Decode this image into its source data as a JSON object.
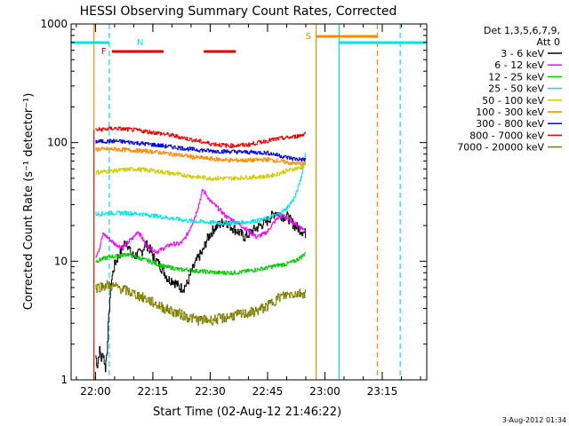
{
  "chart_data": {
    "type": "line",
    "title": "HESSI Observing Summary Count Rates, Corrected",
    "xlabel": "Start Time (02-Aug-12 21:46:22)",
    "ylabel": "Corrected Count Rate (s⁻¹ detector⁻¹)",
    "yscale": "log",
    "ylim": [
      1,
      1000
    ],
    "xlim_minutes": [
      -6.37,
      86.63
    ],
    "y_ticks": [
      {
        "value": 1,
        "label": "1"
      },
      {
        "value": 10,
        "label": "10"
      },
      {
        "value": 100,
        "label": "100"
      },
      {
        "value": 1000,
        "label": "1000"
      }
    ],
    "x_ticks": [
      {
        "minute": 0,
        "label": "22:00"
      },
      {
        "minute": 15,
        "label": "22:15"
      },
      {
        "minute": 30,
        "label": "22:30"
      },
      {
        "minute": 45,
        "label": "22:45"
      },
      {
        "minute": 60,
        "label": "23:00"
      },
      {
        "minute": 75,
        "label": "23:15"
      }
    ],
    "x_minor_step_minutes": 5,
    "legend": {
      "position": "right",
      "header_lines": [
        "Det 1,3,5,6,7,9,",
        "Att 0"
      ]
    },
    "series": [
      {
        "name": "3 - 6 keV",
        "color": "#000000",
        "points": [
          [
            0,
            1.6
          ],
          [
            0.5,
            1.3
          ],
          [
            1,
            1.8
          ],
          [
            1.5,
            1.5
          ],
          [
            2,
            1.7
          ],
          [
            2.5,
            1.2
          ],
          [
            3,
            1.8
          ],
          [
            3.5,
            3.5
          ],
          [
            4,
            6.5
          ],
          [
            5,
            9.5
          ],
          [
            6,
            11
          ],
          [
            7,
            13
          ],
          [
            8,
            15
          ],
          [
            9,
            12
          ],
          [
            10,
            11
          ],
          [
            11,
            11.5
          ],
          [
            12,
            12
          ],
          [
            13,
            14
          ],
          [
            14,
            13
          ],
          [
            15,
            11
          ],
          [
            16,
            10
          ],
          [
            17,
            9
          ],
          [
            18,
            8
          ],
          [
            19,
            7
          ],
          [
            20,
            7
          ],
          [
            21,
            6.5
          ],
          [
            22,
            6
          ],
          [
            23,
            6
          ],
          [
            24,
            6.5
          ],
          [
            25,
            8
          ],
          [
            26,
            9.5
          ],
          [
            27,
            11
          ],
          [
            28,
            12
          ],
          [
            29,
            15
          ],
          [
            30,
            17
          ],
          [
            31,
            19
          ],
          [
            32,
            20
          ],
          [
            33,
            21
          ],
          [
            34,
            22
          ],
          [
            35,
            20
          ],
          [
            36,
            19
          ],
          [
            37,
            18
          ],
          [
            38,
            17
          ],
          [
            39,
            16
          ],
          [
            40,
            17
          ],
          [
            41,
            18
          ],
          [
            42,
            19
          ],
          [
            43,
            20
          ],
          [
            44,
            21
          ],
          [
            45,
            22
          ],
          [
            46,
            24
          ],
          [
            47,
            26
          ],
          [
            48,
            25
          ],
          [
            49,
            24
          ],
          [
            50,
            24
          ],
          [
            51,
            22
          ],
          [
            52,
            20
          ],
          [
            53,
            19
          ],
          [
            54,
            18
          ],
          [
            55,
            17
          ]
        ]
      },
      {
        "name": "6 - 12 keV",
        "color": "#ff00ff",
        "points": [
          [
            0,
            11
          ],
          [
            1,
            13
          ],
          [
            2,
            17
          ],
          [
            3,
            16
          ],
          [
            4,
            15
          ],
          [
            5,
            14
          ],
          [
            6,
            13.5
          ],
          [
            7,
            13
          ],
          [
            8,
            14
          ],
          [
            9,
            15
          ],
          [
            10,
            16
          ],
          [
            11,
            18
          ],
          [
            12,
            16
          ],
          [
            13,
            14
          ],
          [
            14,
            13
          ],
          [
            15,
            12.5
          ],
          [
            16,
            12
          ],
          [
            17,
            12.5
          ],
          [
            18,
            13
          ],
          [
            19,
            13.5
          ],
          [
            20,
            14
          ],
          [
            21,
            14
          ],
          [
            22,
            14
          ],
          [
            23,
            15
          ],
          [
            24,
            17
          ],
          [
            25,
            20
          ],
          [
            26,
            24
          ],
          [
            27,
            30
          ],
          [
            28,
            40
          ],
          [
            29,
            36
          ],
          [
            30,
            32
          ],
          [
            31,
            30
          ],
          [
            32,
            28
          ],
          [
            33,
            26
          ],
          [
            34,
            24
          ],
          [
            35,
            23
          ],
          [
            36,
            22
          ],
          [
            37,
            21
          ],
          [
            38,
            20
          ],
          [
            39,
            19
          ],
          [
            40,
            18
          ],
          [
            41,
            17
          ],
          [
            42,
            16
          ],
          [
            43,
            16.5
          ],
          [
            44,
            17
          ],
          [
            45,
            18
          ],
          [
            46,
            20
          ],
          [
            47,
            22
          ],
          [
            48,
            24
          ],
          [
            49,
            24
          ],
          [
            50,
            23
          ],
          [
            51,
            22
          ],
          [
            52,
            21
          ],
          [
            53,
            20
          ],
          [
            54,
            19
          ],
          [
            55,
            18
          ]
        ]
      },
      {
        "name": "12 - 25 keV",
        "color": "#00cc00",
        "points": [
          [
            0,
            10
          ],
          [
            2,
            10.5
          ],
          [
            4,
            11
          ],
          [
            6,
            11
          ],
          [
            8,
            11.5
          ],
          [
            10,
            11
          ],
          [
            12,
            10.5
          ],
          [
            14,
            10
          ],
          [
            16,
            9.5
          ],
          [
            18,
            9
          ],
          [
            20,
            8.8
          ],
          [
            22,
            8.5
          ],
          [
            24,
            8.5
          ],
          [
            26,
            8.3
          ],
          [
            28,
            8.2
          ],
          [
            30,
            8.1
          ],
          [
            32,
            8
          ],
          [
            34,
            8
          ],
          [
            36,
            8
          ],
          [
            38,
            8.1
          ],
          [
            40,
            8.3
          ],
          [
            42,
            8.5
          ],
          [
            44,
            8.7
          ],
          [
            46,
            9
          ],
          [
            48,
            9.3
          ],
          [
            50,
            9.5
          ],
          [
            52,
            10
          ],
          [
            54,
            11
          ],
          [
            55,
            12
          ]
        ]
      },
      {
        "name": "25 - 50 keV",
        "color": "#00e5e5",
        "points": [
          [
            0,
            25
          ],
          [
            4,
            25.5
          ],
          [
            8,
            25.5
          ],
          [
            12,
            25
          ],
          [
            16,
            24
          ],
          [
            20,
            23
          ],
          [
            24,
            22
          ],
          [
            28,
            21.5
          ],
          [
            32,
            21
          ],
          [
            36,
            21
          ],
          [
            40,
            21.5
          ],
          [
            44,
            22.5
          ],
          [
            48,
            25
          ],
          [
            50,
            28
          ],
          [
            52,
            34
          ],
          [
            53,
            42
          ],
          [
            54,
            55
          ],
          [
            55,
            85
          ]
        ]
      },
      {
        "name": "50 - 100 keV",
        "color": "#cccc00",
        "points": [
          [
            0,
            56
          ],
          [
            5,
            58
          ],
          [
            10,
            60
          ],
          [
            15,
            58
          ],
          [
            20,
            55
          ],
          [
            25,
            52
          ],
          [
            30,
            50
          ],
          [
            35,
            50
          ],
          [
            40,
            51
          ],
          [
            45,
            52
          ],
          [
            48,
            55
          ],
          [
            50,
            58
          ],
          [
            52,
            60
          ],
          [
            54,
            62
          ],
          [
            55,
            68
          ]
        ]
      },
      {
        "name": "100 - 300 keV",
        "color": "#ff8800",
        "points": [
          [
            0,
            88
          ],
          [
            5,
            88
          ],
          [
            10,
            86
          ],
          [
            15,
            84
          ],
          [
            20,
            80
          ],
          [
            25,
            76
          ],
          [
            30,
            73
          ],
          [
            35,
            71
          ],
          [
            40,
            71
          ],
          [
            45,
            72
          ],
          [
            48,
            70
          ],
          [
            50,
            68
          ],
          [
            52,
            67
          ],
          [
            54,
            66
          ],
          [
            55,
            66
          ]
        ]
      },
      {
        "name": "300 - 800 keV",
        "color": "#0000ee",
        "points": [
          [
            0,
            102
          ],
          [
            5,
            103
          ],
          [
            10,
            100
          ],
          [
            15,
            96
          ],
          [
            20,
            92
          ],
          [
            25,
            88
          ],
          [
            30,
            85
          ],
          [
            35,
            84
          ],
          [
            40,
            83
          ],
          [
            45,
            82
          ],
          [
            48,
            78
          ],
          [
            50,
            75
          ],
          [
            52,
            73
          ],
          [
            54,
            72
          ],
          [
            55,
            72
          ]
        ]
      },
      {
        "name": "800 - 7000 keV",
        "color": "#ee0000",
        "points": [
          [
            0,
            128
          ],
          [
            5,
            132
          ],
          [
            10,
            128
          ],
          [
            15,
            122
          ],
          [
            20,
            115
          ],
          [
            25,
            106
          ],
          [
            30,
            98
          ],
          [
            35,
            94
          ],
          [
            40,
            96
          ],
          [
            45,
            104
          ],
          [
            48,
            108
          ],
          [
            50,
            110
          ],
          [
            52,
            112
          ],
          [
            54,
            116
          ],
          [
            55,
            122
          ]
        ]
      },
      {
        "name": "7000 - 20000 keV",
        "color": "#808000",
        "points": [
          [
            0,
            6
          ],
          [
            3,
            6.3
          ],
          [
            6,
            6
          ],
          [
            9,
            5.5
          ],
          [
            12,
            5
          ],
          [
            15,
            4.5
          ],
          [
            18,
            4
          ],
          [
            21,
            3.7
          ],
          [
            24,
            3.4
          ],
          [
            27,
            3.2
          ],
          [
            30,
            3.2
          ],
          [
            33,
            3.3
          ],
          [
            36,
            3.5
          ],
          [
            39,
            3.6
          ],
          [
            42,
            3.8
          ],
          [
            45,
            4.2
          ],
          [
            48,
            5
          ],
          [
            51,
            5.3
          ],
          [
            54,
            5.4
          ],
          [
            55,
            5.4
          ]
        ]
      }
    ],
    "flag_bars": [
      {
        "label": "F",
        "color": "#ee0000",
        "segments": [
          [
            4.3,
            17.8
          ],
          [
            28.3,
            36.7
          ]
        ]
      },
      {
        "label": "N",
        "color": "#00e5e5",
        "segments": [
          [
            -6.37,
            3.6
          ],
          [
            63.7,
            86.63
          ]
        ]
      },
      {
        "label": "S",
        "color": "#ff8800",
        "segments": [
          [
            57.7,
            73.7
          ]
        ]
      }
    ],
    "vertical_markers": [
      {
        "minute": -0.4,
        "color": "#ff8800",
        "style": "solid"
      },
      {
        "minute": 3.6,
        "color": "#00e5e5",
        "style": "dashed"
      },
      {
        "minute": 57.7,
        "color": "#ff8800",
        "style": "solid"
      },
      {
        "minute": 63.7,
        "color": "#00e5e5",
        "style": "solid"
      },
      {
        "minute": 73.7,
        "color": "#ff8800",
        "style": "dashed"
      },
      {
        "minute": 79.7,
        "color": "#00e5e5",
        "style": "dashed"
      }
    ]
  },
  "footer_timestamp": "3-Aug-2012 01:34"
}
